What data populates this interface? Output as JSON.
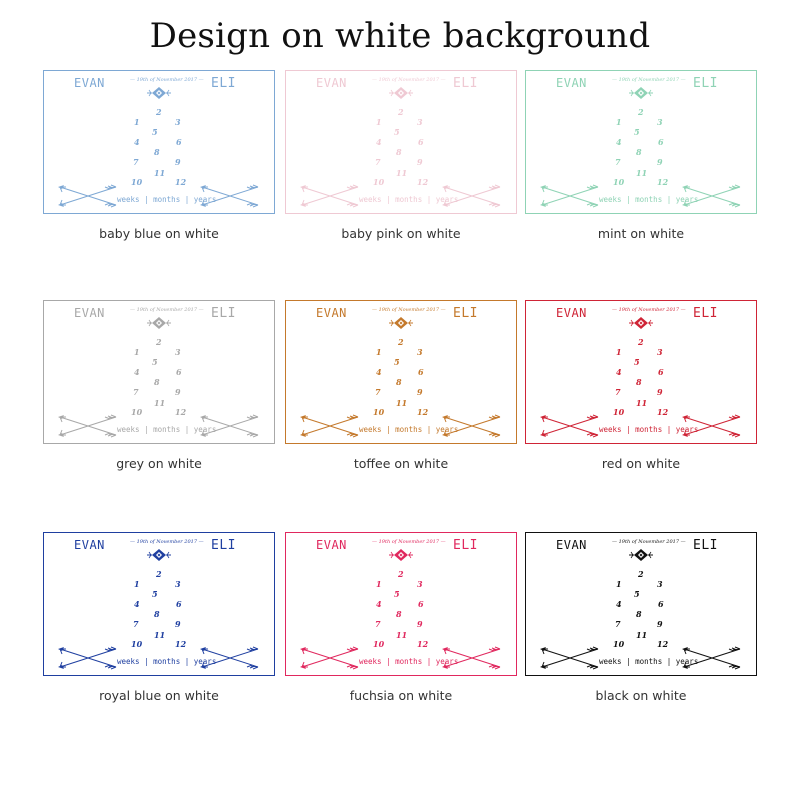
{
  "title": "Design on white background",
  "card": {
    "name_left": "EVAN",
    "name_right": "ELI",
    "date": "— 19th of November 2017 —",
    "numbers": [
      "1",
      "2",
      "3",
      "4",
      "5",
      "6",
      "7",
      "8",
      "9",
      "10",
      "11",
      "12"
    ],
    "timeline": "weeks | months | years"
  },
  "variants": [
    {
      "caption": "baby blue on white",
      "color": "#7ea8d4"
    },
    {
      "caption": "baby pink on white",
      "color": "#efc9d3"
    },
    {
      "caption": "mint on white",
      "color": "#8fd3b5"
    },
    {
      "caption": "grey on white",
      "color": "#a8a8a8"
    },
    {
      "caption": "toffee on white",
      "color": "#c4792c"
    },
    {
      "caption": "red on white",
      "color": "#cf2436"
    },
    {
      "caption": "royal blue on white",
      "color": "#1f3fa0"
    },
    {
      "caption": "fuchsia on white",
      "color": "#e0285e"
    },
    {
      "caption": "black on white",
      "color": "#111111"
    }
  ]
}
